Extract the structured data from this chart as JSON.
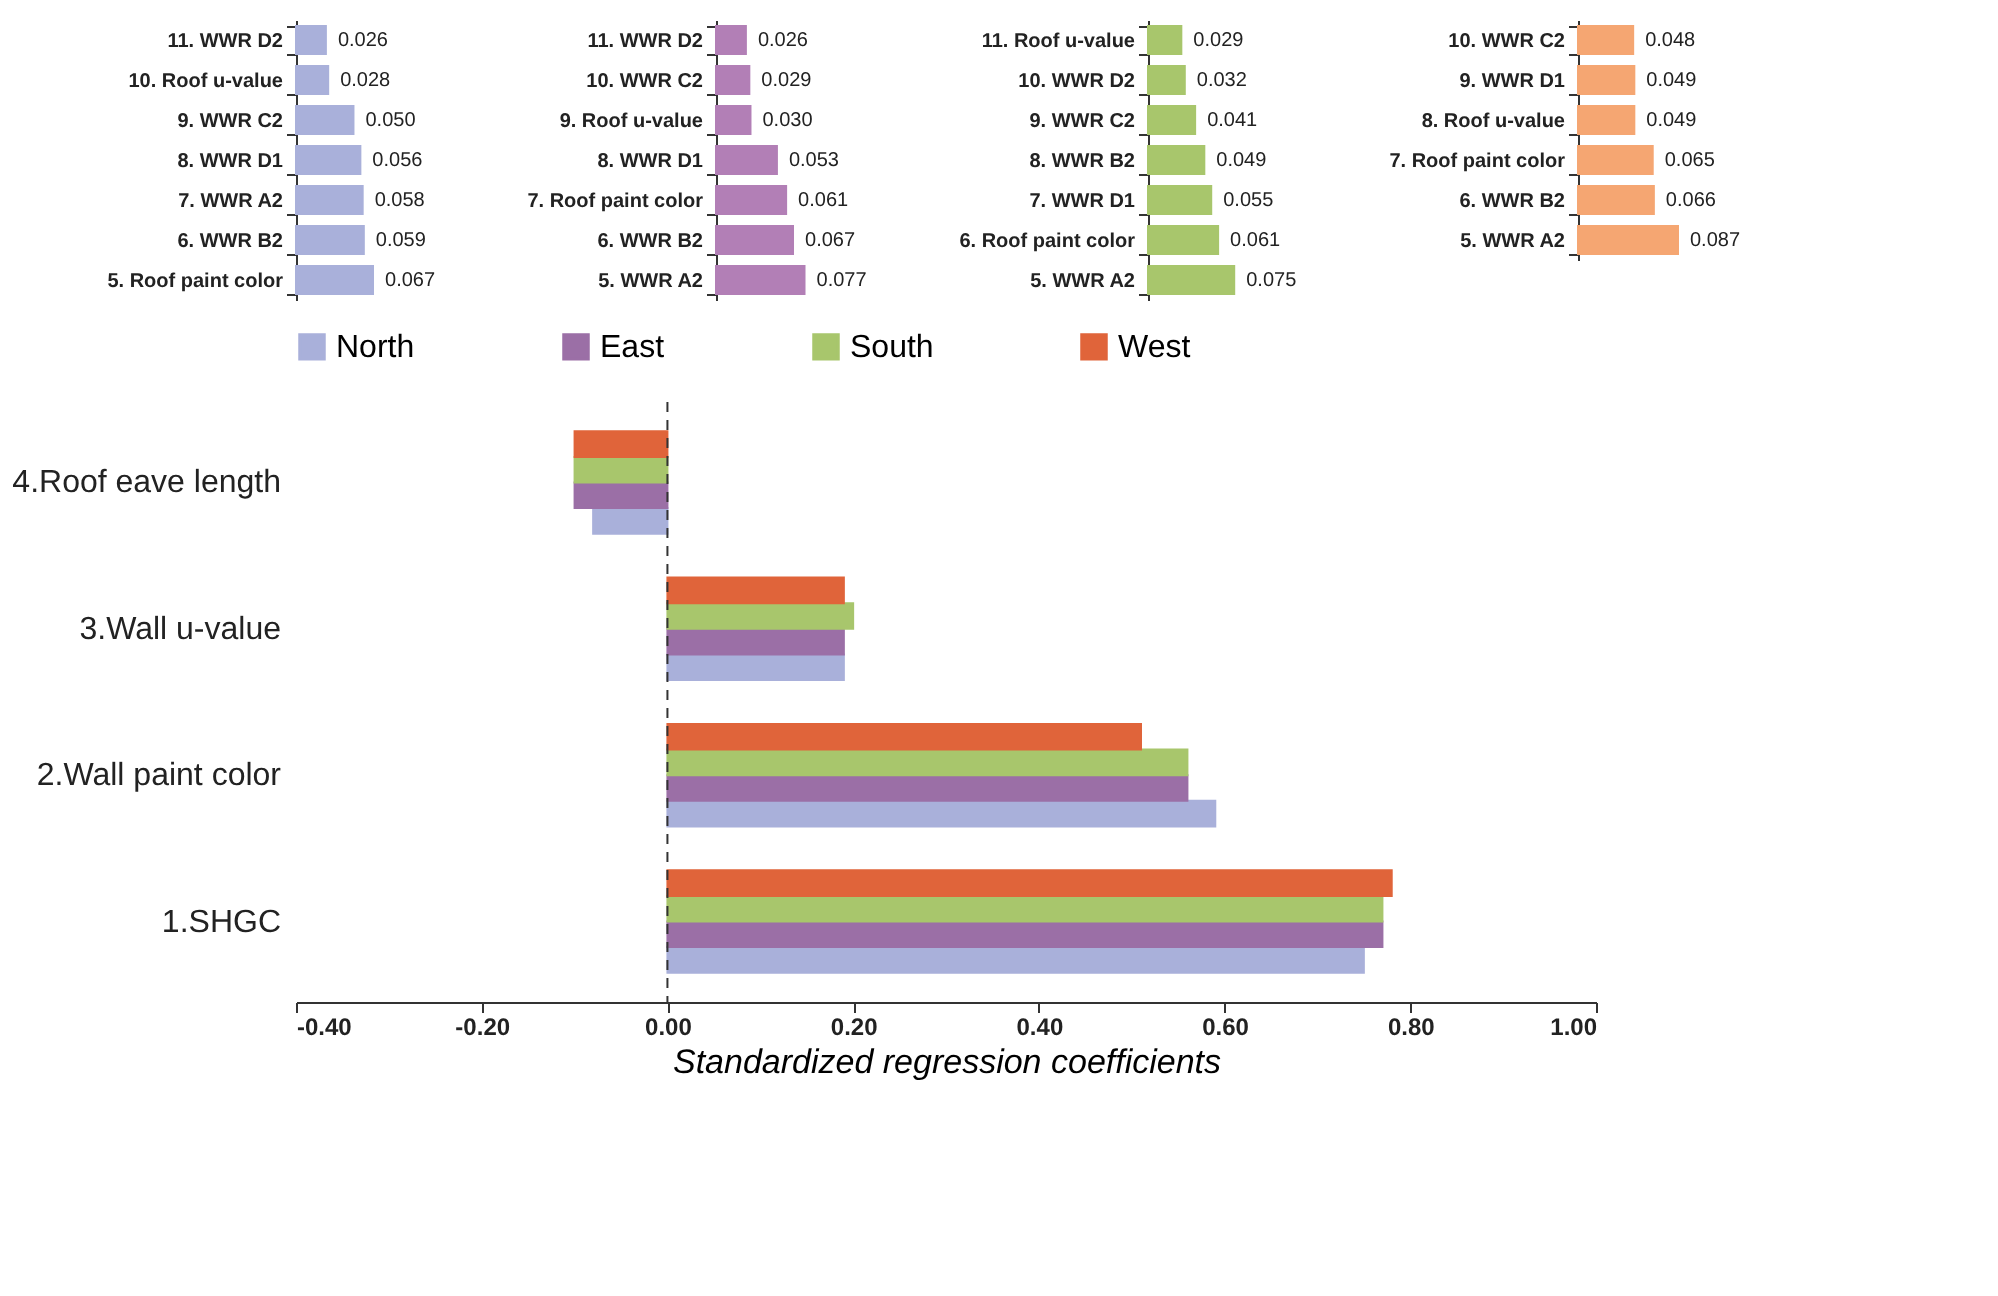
{
  "chart_data": [
    {
      "type": "bar",
      "orientation": "horizontal",
      "color": "#a9b0da",
      "categories": [
        "11. WWR D2",
        "10. Roof u-value",
        "9. WWR C2",
        "8. WWR D1",
        "7. WWR A2",
        "6. WWR B2",
        "5. Roof paint color"
      ],
      "values": [
        0.026,
        0.028,
        0.05,
        0.056,
        0.058,
        0.059,
        0.067
      ],
      "value_labels": [
        "0.026",
        "0.028",
        "0.050",
        "0.056",
        "0.058",
        "0.059",
        "0.067"
      ]
    },
    {
      "type": "bar",
      "orientation": "horizontal",
      "color": "#b27fb6",
      "categories": [
        "11. WWR D2",
        "10. WWR C2",
        "9. Roof u-value",
        "8. WWR D1",
        "7. Roof paint color",
        "6. WWR B2",
        "5. WWR A2"
      ],
      "values": [
        0.026,
        0.029,
        0.03,
        0.053,
        0.061,
        0.067,
        0.077
      ],
      "value_labels": [
        "0.026",
        "0.029",
        "0.030",
        "0.053",
        "0.061",
        "0.067",
        "0.077"
      ]
    },
    {
      "type": "bar",
      "orientation": "horizontal",
      "color": "#a8c66c",
      "categories": [
        "11. Roof u-value",
        "10. WWR D2",
        "9. WWR C2",
        "8. WWR B2",
        "7. WWR D1",
        "6. Roof paint color",
        "5. WWR A2"
      ],
      "values": [
        0.029,
        0.032,
        0.041,
        0.049,
        0.055,
        0.061,
        0.075
      ],
      "value_labels": [
        "0.029",
        "0.032",
        "0.041",
        "0.049",
        "0.055",
        "0.061",
        "0.075"
      ]
    },
    {
      "type": "bar",
      "orientation": "horizontal",
      "color": "#f5a672",
      "categories": [
        "10. WWR C2",
        "9. WWR D1",
        "8. Roof u-value",
        "7. Roof paint color",
        "6. WWR B2",
        "5. WWR A2"
      ],
      "values": [
        0.048,
        0.049,
        0.049,
        0.065,
        0.066,
        0.087
      ],
      "value_labels": [
        "0.048",
        "0.049",
        "0.049",
        "0.065",
        "0.066",
        "0.087"
      ]
    },
    {
      "type": "bar",
      "orientation": "horizontal",
      "legend": "top",
      "grid": false,
      "xlabel": "Standardized regression coefficients",
      "categories": [
        "4.Roof eave length",
        "3.Wall u-value",
        "2.Wall paint color",
        "1.SHGC"
      ],
      "xlim": [
        -0.4,
        1.0
      ],
      "xticks": [
        {
          "value": -0.4,
          "label": "-0.40"
        },
        {
          "value": -0.2,
          "label": "-0.20"
        },
        {
          "value": 0,
          "label": "0.00"
        },
        {
          "value": 0.2,
          "label": "0.20"
        },
        {
          "value": 0.4,
          "label": "0.40"
        },
        {
          "value": 0.6,
          "label": "0.60"
        },
        {
          "value": 0.8,
          "label": "0.80"
        },
        {
          "value": 1.0,
          "label": "1.00"
        }
      ],
      "ref_lines": [
        {
          "axis": "x",
          "value": 0,
          "line_style": "dashed"
        }
      ],
      "series": [
        {
          "name": "North",
          "color": "#a9b0da",
          "values": [
            -0.08,
            0.19,
            0.59,
            0.75
          ]
        },
        {
          "name": "East",
          "color": "#9b6fa6",
          "values": [
            -0.1,
            0.19,
            0.56,
            0.77
          ]
        },
        {
          "name": "South",
          "color": "#a8c66c",
          "values": [
            -0.1,
            0.2,
            0.56,
            0.77
          ]
        },
        {
          "name": "West",
          "color": "#e0643a",
          "values": [
            -0.1,
            0.19,
            0.51,
            0.78
          ]
        }
      ]
    }
  ]
}
